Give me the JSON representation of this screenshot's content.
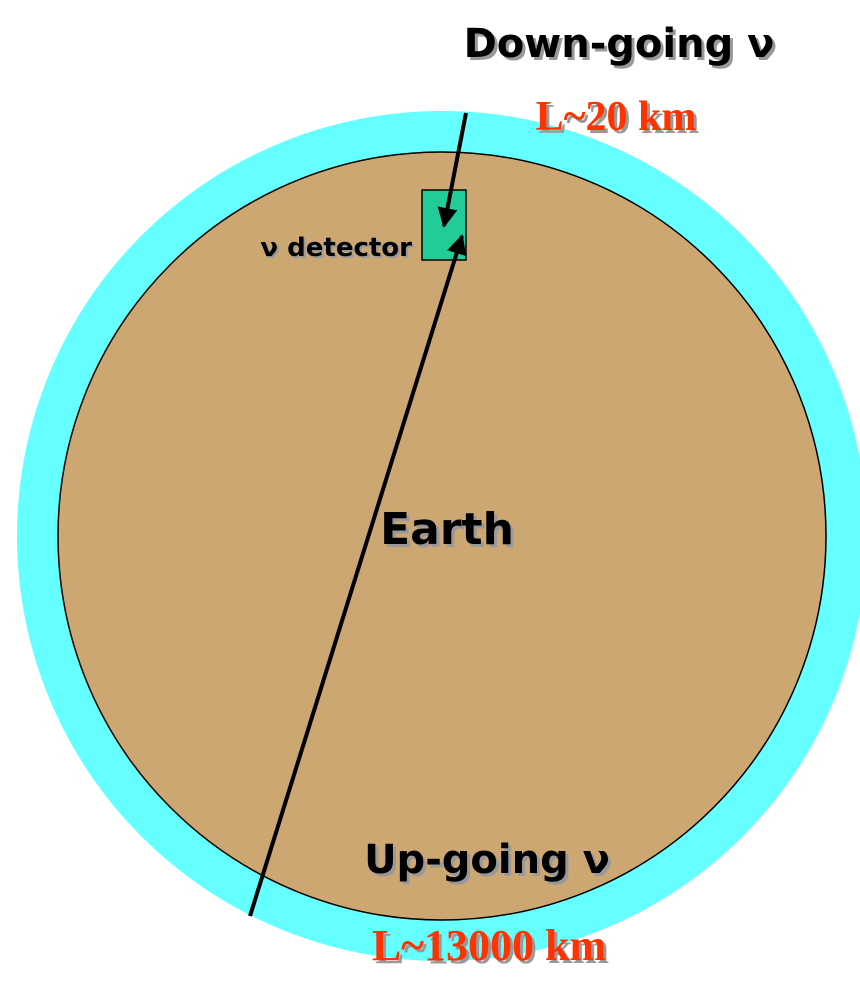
{
  "labels": {
    "down_going": "Down-going ν",
    "down_length": "L~20 km",
    "detector": "ν detector",
    "earth": "Earth",
    "up_going": "Up-going ν",
    "up_length": "L~13000 km"
  }
}
